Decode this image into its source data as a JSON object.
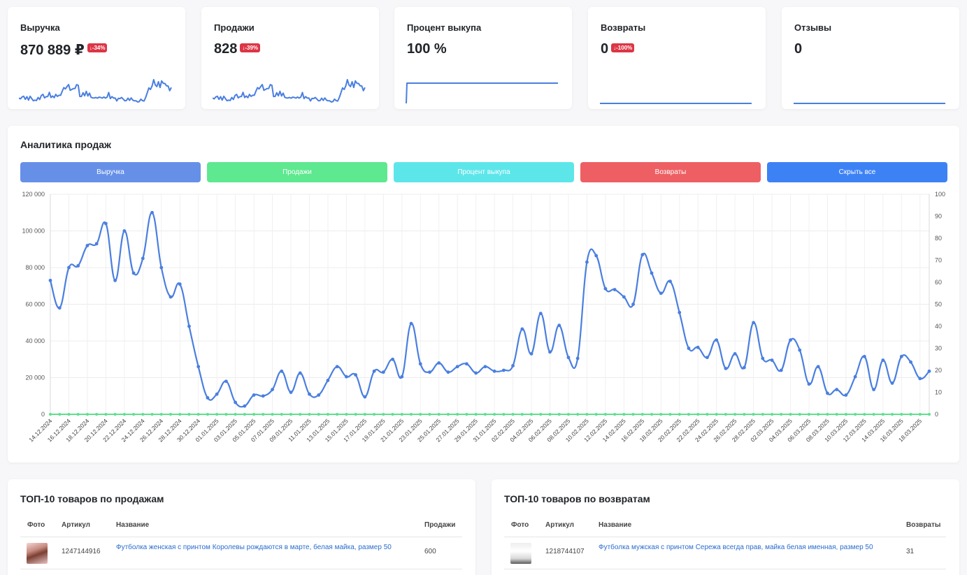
{
  "kpis": [
    {
      "title": "Выручка",
      "value": "870 889 ₽",
      "badge": "↓-34%"
    },
    {
      "title": "Продажи",
      "value": "828",
      "badge": "↓-39%"
    },
    {
      "title": "Процент выкупа",
      "value": "100 %",
      "badge": ""
    },
    {
      "title": "Возвраты",
      "value": "0",
      "badge": "↓-100%"
    },
    {
      "title": "Отзывы",
      "value": "0",
      "badge": ""
    }
  ],
  "colors": {
    "line": "#4a7fe0",
    "green": "#5ee08e",
    "badge": "#dc3545"
  },
  "analytics": {
    "title": "Аналитика продаж",
    "buttons": [
      {
        "label": "Выручка",
        "color": "#6690e8"
      },
      {
        "label": "Продажи",
        "color": "#5ee88f"
      },
      {
        "label": "Процент выкупа",
        "color": "#5de6ea"
      },
      {
        "label": "Возвраты",
        "color": "#ee5f63"
      },
      {
        "label": "Скрыть все",
        "color": "#3d82f5"
      }
    ]
  },
  "chart_data": {
    "type": "line",
    "x": [
      "14.12.2024",
      "15.12.2024",
      "16.12.2024",
      "17.12.2024",
      "18.12.2024",
      "19.12.2024",
      "20.12.2024",
      "21.12.2024",
      "22.12.2024",
      "23.12.2024",
      "24.12.2024",
      "25.12.2024",
      "26.12.2024",
      "27.12.2024",
      "28.12.2024",
      "29.12.2024",
      "30.12.2024",
      "31.12.2024",
      "01.01.2025",
      "02.01.2025",
      "03.01.2025",
      "04.01.2025",
      "05.01.2025",
      "06.01.2025",
      "07.01.2025",
      "08.01.2025",
      "09.01.2025",
      "10.01.2025",
      "11.01.2025",
      "12.01.2025",
      "13.01.2025",
      "14.01.2025",
      "15.01.2025",
      "16.01.2025",
      "17.01.2025",
      "18.01.2025",
      "19.01.2025",
      "20.01.2025",
      "21.01.2025",
      "22.01.2025",
      "23.01.2025",
      "24.01.2025",
      "25.01.2025",
      "26.01.2025",
      "27.01.2025",
      "28.01.2025",
      "29.01.2025",
      "30.01.2025",
      "31.01.2025",
      "01.02.2025",
      "02.02.2025",
      "03.02.2025",
      "04.02.2025",
      "05.02.2025",
      "06.02.2025",
      "07.02.2025",
      "08.02.2025",
      "09.02.2025",
      "10.02.2025",
      "11.02.2025",
      "12.02.2025",
      "13.02.2025",
      "14.02.2025",
      "15.02.2025",
      "16.02.2025",
      "17.02.2025",
      "18.02.2025",
      "19.02.2025",
      "20.02.2025",
      "21.02.2025",
      "22.02.2025",
      "23.02.2025",
      "24.02.2025",
      "25.02.2025",
      "26.02.2025",
      "27.02.2025",
      "28.02.2025",
      "01.03.2025",
      "02.03.2025",
      "03.03.2025",
      "04.03.2025",
      "05.03.2025",
      "06.03.2025",
      "07.03.2025",
      "08.03.2025",
      "09.03.2025",
      "10.03.2025",
      "11.03.2025",
      "12.03.2025",
      "13.03.2025",
      "14.03.2025",
      "15.03.2025",
      "16.03.2025",
      "17.03.2025",
      "18.03.2025",
      "19.03.2025"
    ],
    "x_tick_labels": [
      "14.12.2024",
      "16.12.2024",
      "18.12.2024",
      "20.12.2024",
      "22.12.2024",
      "24.12.2024",
      "26.12.2024",
      "28.12.2024",
      "30.12.2024",
      "01.01.2025",
      "03.01.2025",
      "05.01.2025",
      "07.01.2025",
      "09.01.2025",
      "11.01.2025",
      "13.01.2025",
      "15.01.2025",
      "17.01.2025",
      "19.01.2025",
      "21.01.2025",
      "23.01.2025",
      "25.01.2025",
      "27.01.2025",
      "29.01.2025",
      "31.01.2025",
      "02.02.2025",
      "04.02.2025",
      "06.02.2025",
      "08.02.2025",
      "10.02.2025",
      "12.02.2025",
      "14.02.2025",
      "16.02.2025",
      "18.02.2025",
      "20.02.2025",
      "22.02.2025",
      "24.02.2025",
      "26.02.2025",
      "28.02.2025",
      "02.03.2025",
      "04.03.2025",
      "06.03.2025",
      "08.03.2025",
      "10.03.2025",
      "12.03.2025",
      "14.03.2025",
      "16.03.2025",
      "18.03.2025"
    ],
    "series": [
      {
        "values": [
          73000,
          58000,
          80000,
          81000,
          92000,
          93000,
          104000,
          73000,
          100000,
          77000,
          85000,
          110000,
          80000,
          64000,
          71000,
          48000,
          26000,
          9000,
          11000,
          18000,
          6500,
          4500,
          10500,
          10000,
          13500,
          23500,
          12000,
          22500,
          11000,
          10500,
          18500,
          26000,
          20500,
          21500,
          9500,
          23500,
          23000,
          30000,
          20500,
          49500,
          27500,
          23000,
          28000,
          23000,
          26000,
          27500,
          22500,
          26000,
          23500,
          24000,
          26500,
          46500,
          33000,
          55000,
          34000,
          48500,
          31000,
          30500,
          83000,
          86500,
          68500,
          68000,
          64000,
          60000,
          87000,
          77000,
          66000,
          72500,
          55500,
          36000,
          36500,
          31000,
          40500,
          25000,
          33000,
          25500,
          50000,
          30500,
          29500,
          24000,
          40500,
          35000,
          16500,
          26000,
          11500,
          13500,
          10500,
          20500,
          31500,
          13500,
          29500,
          17000,
          31500,
          28500,
          19500,
          23500
        ]
      },
      {
        "values": [
          0,
          0,
          0,
          0,
          0,
          0,
          0,
          0,
          0,
          0,
          0,
          0,
          0,
          0,
          0,
          0,
          0,
          0,
          0,
          0,
          0,
          0,
          0,
          0,
          0,
          0,
          0,
          0,
          0,
          0,
          0,
          0,
          0,
          0,
          0,
          0,
          0,
          0,
          0,
          0,
          0,
          0,
          0,
          0,
          0,
          0,
          0,
          0,
          0,
          0,
          0,
          0,
          0,
          0,
          0,
          0,
          0,
          0,
          0,
          0,
          0,
          0,
          0,
          0,
          0,
          0,
          0,
          0,
          0,
          0,
          0,
          0,
          0,
          0,
          0,
          0,
          0,
          0,
          0,
          0,
          0,
          0,
          0,
          0,
          0,
          0,
          0,
          0,
          0,
          0,
          0,
          0,
          0,
          0,
          0,
          0
        ]
      }
    ],
    "y_left": {
      "min": 0,
      "max": 120000,
      "ticks": [
        "0",
        "20 000",
        "40 000",
        "60 000",
        "80 000",
        "100 000",
        "120 000"
      ]
    },
    "y_right": {
      "min": 0,
      "max": 100,
      "ticks": [
        "0",
        "10",
        "20",
        "30",
        "40",
        "50",
        "60",
        "70",
        "80",
        "90",
        "100"
      ]
    },
    "grid": true
  },
  "top_sales": {
    "title": "ТОП-10 товаров по продажам",
    "headers": {
      "photo": "Фото",
      "article": "Артикул",
      "name": "Название",
      "value": "Продажи"
    },
    "row": {
      "article": "1247144916",
      "name": "Футболка женская с принтом Королевы рождаются в марте, белая майка, размер 50",
      "value": "600"
    }
  },
  "top_returns": {
    "title": "ТОП-10 товаров по возвратам",
    "headers": {
      "photo": "Фото",
      "article": "Артикул",
      "name": "Название",
      "value": "Возвраты"
    },
    "row": {
      "article": "1218744107",
      "name": "Футболка мужская с принтом Сережа всегда прав, майка белая именная, размер 50",
      "value": "31"
    }
  }
}
